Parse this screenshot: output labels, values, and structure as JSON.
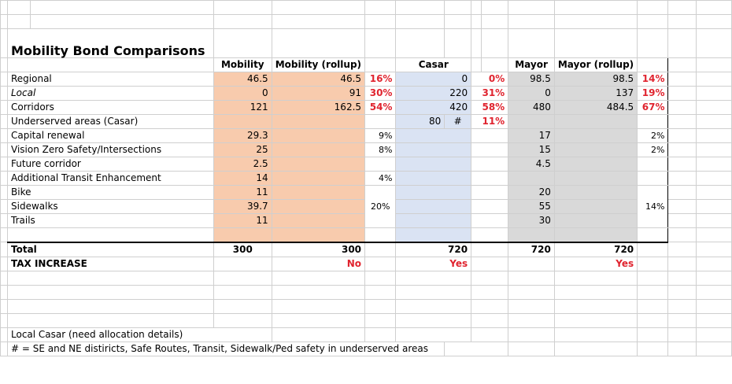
{
  "sheet": {
    "title": "Mobility Bond Comparisons",
    "headers": {
      "mobility": "Mobility",
      "mobility_rollup": "Mobility (rollup)",
      "casar": "Casar",
      "mayor": "Mayor",
      "mayor_rollup": "Mayor (rollup)"
    },
    "rows": [
      {
        "label": "Regional",
        "mob": "46.5",
        "mob_r": "46.5",
        "mob_p": "16%",
        "cas": "0",
        "cas_p": "0%",
        "may": "98.5",
        "may_r": "98.5",
        "may_p": "14%"
      },
      {
        "label": "Local",
        "mob": "0",
        "mob_r": "91",
        "mob_p": "30%",
        "cas": "220",
        "cas_p": "31%",
        "may": "0",
        "may_r": "137",
        "may_p": "19%"
      },
      {
        "label": "Corridors",
        "mob": "121",
        "mob_r": "162.5",
        "mob_p": "54%",
        "cas": "420",
        "cas_p": "58%",
        "may": "480",
        "may_r": "484.5",
        "may_p": "67%"
      },
      {
        "label": "Underserved areas (Casar)",
        "cas": "80",
        "cas_hash": "#",
        "cas_p": "11%"
      },
      {
        "label": "Capital renewal",
        "mob": "29.3",
        "mob_p": "9%",
        "may": "17",
        "may_p": "2%"
      },
      {
        "label": "Vision Zero Safety/Intersections",
        "mob": "25",
        "mob_p": "8%",
        "may": "15",
        "may_p": "2%"
      },
      {
        "label": "Future corridor",
        "mob": "2.5",
        "may": "4.5"
      },
      {
        "label": "Additional Transit Enhancement",
        "mob": "14",
        "mob_p": "4%"
      },
      {
        "label": "Bike",
        "mob": "11",
        "may": "20"
      },
      {
        "label": "Sidewalks",
        "mob": "39.7",
        "mob_p": "20%",
        "may": "55",
        "may_p": "14%"
      },
      {
        "label": "Trails",
        "mob": "11",
        "may": "30"
      }
    ],
    "total": {
      "label": "Total",
      "mob": "300",
      "mob_r": "300",
      "cas": "720",
      "may": "720",
      "may_r": "720"
    },
    "tax": {
      "label": "TAX INCREASE",
      "mob_r": "No",
      "cas": "Yes",
      "may_r": "Yes"
    },
    "notes": {
      "local_casar": "Local Casar (need allocation details)",
      "hash_note": "# = SE and NE distiricts, Safe Routes, Transit, Sidewalk/Ped safety in underserved areas"
    }
  }
}
